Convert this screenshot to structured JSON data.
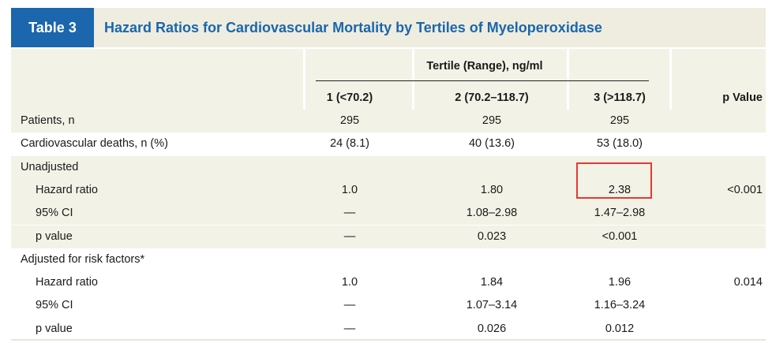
{
  "table": {
    "tag": "Table 3",
    "title": "Hazard Ratios for Cardiovascular Mortality by Tertiles of Myeloperoxidase",
    "group_header": "Tertile (Range), ng/ml",
    "columns": [
      "1 (<70.2)",
      "2 (70.2–118.7)",
      "3 (>118.7)",
      "p Value"
    ],
    "rows": [
      {
        "label": "Patients, n",
        "indent": false,
        "cells": [
          "295",
          "295",
          "295",
          ""
        ]
      },
      {
        "label": "Cardiovascular deaths, n (%)",
        "indent": false,
        "cells": [
          "24 (8.1)",
          "40 (13.6)",
          "53 (18.0)",
          ""
        ]
      },
      {
        "label": "Unadjusted",
        "indent": false,
        "cells": [
          "",
          "",
          "",
          ""
        ]
      },
      {
        "label": "Hazard ratio",
        "indent": true,
        "cells": [
          "1.0",
          "1.80",
          "2.38",
          "<0.001"
        ]
      },
      {
        "label": "95% CI",
        "indent": true,
        "cells": [
          "—",
          "1.08–2.98",
          "1.47–2.98",
          ""
        ]
      },
      {
        "label": "p value",
        "indent": true,
        "cells": [
          "—",
          "0.023",
          "<0.001",
          ""
        ]
      },
      {
        "label": "Adjusted for risk factors*",
        "indent": false,
        "cells": [
          "",
          "",
          "",
          ""
        ]
      },
      {
        "label": "Hazard ratio",
        "indent": true,
        "cells": [
          "1.0",
          "1.84",
          "1.96",
          "0.014"
        ]
      },
      {
        "label": "95% CI",
        "indent": true,
        "cells": [
          "—",
          "1.07–3.14",
          "1.16–3.24",
          ""
        ]
      },
      {
        "label": "p value",
        "indent": true,
        "cells": [
          "—",
          "0.026",
          "0.012",
          ""
        ]
      }
    ]
  },
  "annotation": {
    "highlight_color": "#e53935",
    "highlighted_row": 3,
    "highlighted_column": 2
  },
  "colors": {
    "brand_blue": "#1b66ad",
    "title_band": "#eeeddf",
    "row_shade": "#f3f2e6"
  }
}
